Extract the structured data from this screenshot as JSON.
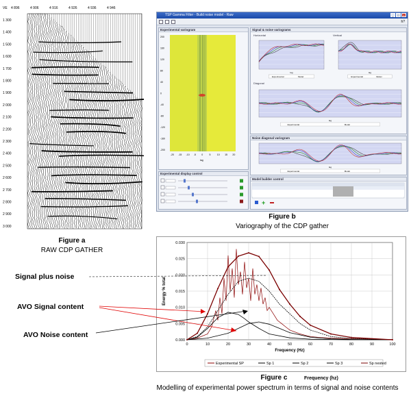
{
  "figure_a": {
    "header_prefix": "VE",
    "cdp_labels": [
      "4 896",
      "4 906",
      "4 916",
      "4 926",
      "4 936",
      "4 946"
    ],
    "time_labels": [
      "1 300",
      "1 400",
      "1 500",
      "1 600",
      "1 700",
      "1 800",
      "1 900",
      "2 000",
      "2 100",
      "2 200",
      "2 300",
      "2 400",
      "2 500",
      "2 600",
      "2 700",
      "2 800",
      "2 900",
      "3 000"
    ],
    "caption_title": "Figure a",
    "caption_sub": "RAW CDP  GATHER"
  },
  "figure_b": {
    "window_title": "TSP Gamma Filter - Build noise model - Raw",
    "help_label": "h?",
    "panel_variogram": "Experimental variogram",
    "panel_signal": "Signal & noise variograms",
    "horizontal_label": "Horizontal",
    "vertical_label": "Vertical",
    "diagonal_label": "Diagonal",
    "noise_diag_label": "Noise diagonal variogram",
    "display_control": "Experimental display control",
    "model_builder": "Model builder control",
    "legend_exp": "Experimental",
    "legend_model": "Model",
    "lag_label": "lag",
    "caption_title": "Figure b",
    "caption_sub": "Variography of the CDP gather"
  },
  "figure_c": {
    "label_signal_noise": "Signal plus noise",
    "label_avo_signal": "AVO Signal content",
    "label_avo_noise": "AVO Noise content",
    "caption_title": "Figure c",
    "caption_sub": "Modelling of experimental power  spectrum in terms of signal and noise contents",
    "frequency_note": "Frequency (hz)",
    "colors": {
      "signal_noise": "#9a5a1e",
      "avo_signal": "#e00000",
      "avo_noise": "#000000",
      "sp_nested": "#8b0000"
    }
  },
  "chart_data": {
    "type": "line",
    "title": "",
    "xlabel": "Frequency (Hz)",
    "ylabel": "Energy % total",
    "xlim": [
      0,
      100
    ],
    "ylim": [
      0,
      0.03
    ],
    "x_ticks": [
      0,
      10,
      20,
      30,
      40,
      50,
      60,
      70,
      80,
      90,
      100
    ],
    "y_ticks": [
      "0.000",
      "0.005",
      "0.010",
      "0.015",
      "0.020",
      "0.025",
      "0.030"
    ],
    "grid": true,
    "legend_position": "bottom",
    "series": [
      {
        "name": "Experimental SP",
        "color": "#8b0000",
        "x": [
          0,
          5,
          10,
          12,
          14,
          15,
          16,
          17,
          18,
          19,
          20,
          21,
          22,
          23,
          24,
          25,
          26,
          27,
          28,
          29,
          30,
          31,
          32,
          33,
          34,
          35,
          36,
          37,
          38,
          39,
          40,
          42,
          44,
          46,
          48,
          50,
          55,
          60,
          65,
          70,
          80,
          90,
          100
        ],
        "y": [
          0.0,
          0.0005,
          0.0018,
          0.004,
          0.009,
          0.006,
          0.013,
          0.008,
          0.019,
          0.012,
          0.026,
          0.015,
          0.022,
          0.013,
          0.028,
          0.017,
          0.021,
          0.014,
          0.024,
          0.016,
          0.019,
          0.012,
          0.022,
          0.014,
          0.017,
          0.012,
          0.016,
          0.011,
          0.013,
          0.009,
          0.01,
          0.008,
          0.006,
          0.005,
          0.004,
          0.003,
          0.0018,
          0.001,
          0.0007,
          0.0005,
          0.0003,
          0.0002,
          0.0001
        ]
      },
      {
        "name": "Sp 1",
        "color": "#000000",
        "x": [
          0,
          10,
          20,
          25,
          30,
          35,
          40,
          45,
          50,
          60,
          70,
          80,
          100
        ],
        "y": [
          0.0,
          0.0005,
          0.002,
          0.0035,
          0.005,
          0.0055,
          0.0048,
          0.0035,
          0.0022,
          0.0008,
          0.0003,
          0.0001,
          0.0
        ]
      },
      {
        "name": "Sp 2",
        "color": "#000000",
        "x": [
          0,
          5,
          10,
          15,
          20,
          25,
          28,
          30,
          35,
          40,
          50,
          60,
          80,
          100
        ],
        "y": [
          0.0,
          0.0008,
          0.0035,
          0.0068,
          0.0085,
          0.0078,
          0.0065,
          0.0055,
          0.0035,
          0.0018,
          0.0006,
          0.0002,
          0.0,
          0.0
        ]
      },
      {
        "name": "Sp 3",
        "color": "#000000",
        "x": [
          0,
          5,
          10,
          15,
          20,
          25,
          30,
          35,
          40,
          45,
          50,
          55,
          60,
          70,
          80,
          100
        ],
        "y": [
          0.0,
          0.001,
          0.004,
          0.009,
          0.014,
          0.018,
          0.019,
          0.018,
          0.015,
          0.011,
          0.008,
          0.005,
          0.003,
          0.001,
          0.0004,
          0.0
        ]
      },
      {
        "name": "Sp nested",
        "color": "#7a0000",
        "x": [
          0,
          5,
          10,
          15,
          20,
          25,
          30,
          35,
          40,
          45,
          50,
          55,
          60,
          70,
          80,
          100
        ],
        "y": [
          0.0,
          0.002,
          0.008,
          0.0158,
          0.0225,
          0.0258,
          0.0268,
          0.0257,
          0.0215,
          0.0155,
          0.011,
          0.0072,
          0.0045,
          0.0018,
          0.0007,
          0.0
        ]
      }
    ]
  }
}
